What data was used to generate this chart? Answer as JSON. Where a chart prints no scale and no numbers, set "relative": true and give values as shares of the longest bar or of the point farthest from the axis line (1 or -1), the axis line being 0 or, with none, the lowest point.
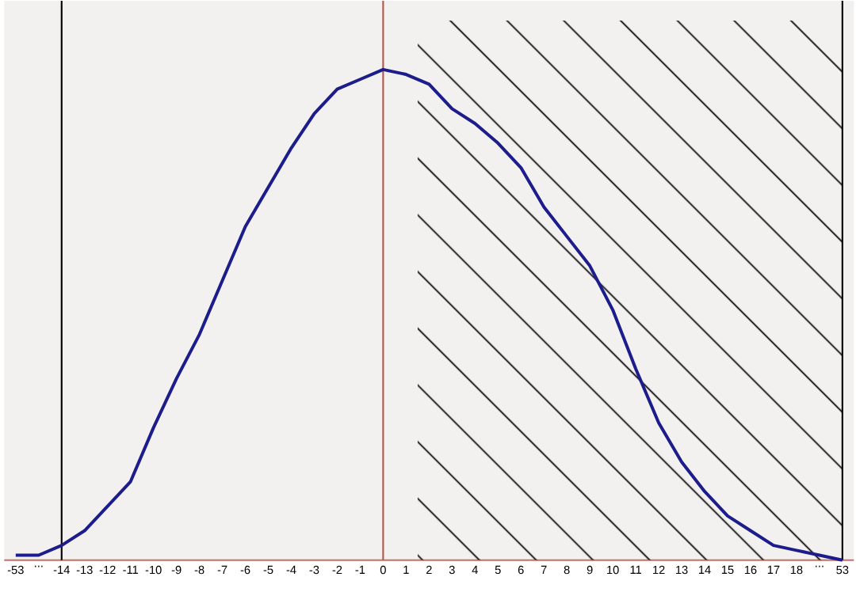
{
  "chart_data": {
    "type": "line",
    "relative": true,
    "categories": [
      "-53",
      "...",
      "-14",
      "-13",
      "-12",
      "-11",
      "-10",
      "-9",
      "-8",
      "-7",
      "-6",
      "-5",
      "-4",
      "-3",
      "-2",
      "-1",
      "0",
      "1",
      "2",
      "3",
      "4",
      "5",
      "6",
      "7",
      "8",
      "9",
      "10",
      "11",
      "12",
      "13",
      "14",
      "15",
      "16",
      "17",
      "18",
      "...",
      "53"
    ],
    "series": [
      {
        "color": "#1c1c8c",
        "values": [
          0.01,
          0.01,
          0.03,
          0.06,
          0.11,
          0.16,
          0.27,
          0.37,
          0.46,
          0.57,
          0.68,
          0.76,
          0.84,
          0.91,
          0.96,
          0.98,
          1,
          0.99,
          0.97,
          0.92,
          0.89,
          0.85,
          0.8,
          0.72,
          0.66,
          0.6,
          0.51,
          0.39,
          0.28,
          0.2,
          0.14,
          0.09,
          0.06,
          0.03,
          0.02,
          0.01,
          0
        ]
      }
    ],
    "ref_lines": [
      {
        "axis": "x",
        "value": "-14",
        "color": "#000000"
      },
      {
        "axis": "x",
        "value": "0",
        "color": "#b5574f"
      },
      {
        "axis": "x",
        "value": "53",
        "color": "#000000"
      }
    ],
    "bands": [
      {
        "axis": "x",
        "from": "2",
        "to": "53",
        "color": "#000000"
      }
    ],
    "grid": false,
    "marker": "none",
    "line_style": "solid"
  }
}
